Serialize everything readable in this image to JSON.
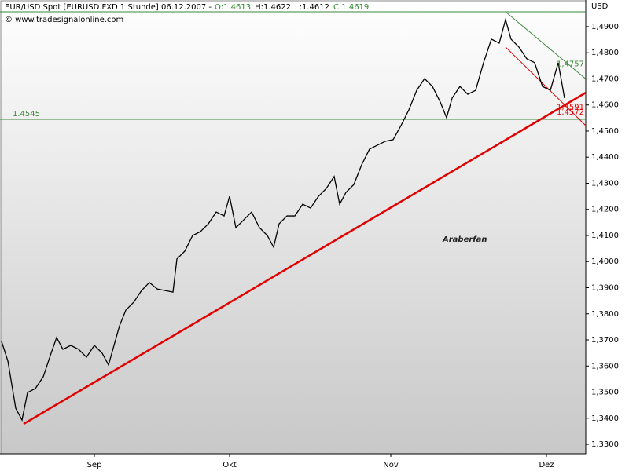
{
  "chart_data": {
    "type": "line",
    "title": "EUR/USD Spot [EURUSD FXD  1 Stunde] 06.12.2007 -",
    "ohlc_labels": [
      {
        "text": "O:1.4613",
        "color": "#2e8b2e"
      },
      {
        "text": "H:1.4622",
        "color": "#000000"
      },
      {
        "text": "L:1.4612",
        "color": "#000000"
      },
      {
        "text": "C:1.4619",
        "color": "#2e8b2e"
      }
    ],
    "source": "© www.tradesignalonline.com",
    "annotation": "Araberfan",
    "y_unit": "USD",
    "x": [
      2,
      10,
      20,
      28,
      35,
      45,
      55,
      65,
      72,
      80,
      90,
      100,
      110,
      120,
      130,
      138,
      145,
      152,
      160,
      170,
      180,
      190,
      200,
      210,
      220,
      225,
      235,
      245,
      255,
      265,
      275,
      285,
      292,
      300,
      310,
      320,
      330,
      340,
      348,
      355,
      365,
      375,
      385,
      395,
      405,
      415,
      425,
      432,
      440,
      450,
      460,
      470,
      480,
      490,
      500,
      510,
      520,
      530,
      540,
      550,
      560,
      568,
      575,
      585,
      595,
      605,
      615,
      625,
      635,
      643,
      650,
      660,
      670,
      680,
      690,
      700,
      710,
      718
    ],
    "series": [
      {
        "name": "EUR/USD",
        "color": "#000000",
        "values": [
          1.3694,
          1.3619,
          1.3438,
          1.3393,
          1.3498,
          1.3514,
          1.3559,
          1.3649,
          1.3709,
          1.3664,
          1.3679,
          1.3664,
          1.3634,
          1.3679,
          1.3649,
          1.3604,
          1.3679,
          1.3754,
          1.3814,
          1.3844,
          1.3889,
          1.392,
          1.3895,
          1.3889,
          1.3883,
          1.401,
          1.404,
          1.41,
          1.4115,
          1.4145,
          1.419,
          1.4175,
          1.425,
          1.413,
          1.416,
          1.419,
          1.413,
          1.41,
          1.4055,
          1.4145,
          1.4175,
          1.4175,
          1.422,
          1.4205,
          1.425,
          1.428,
          1.4326,
          1.422,
          1.4265,
          1.4295,
          1.4371,
          1.4431,
          1.4446,
          1.4461,
          1.4467,
          1.4521,
          1.4581,
          1.4656,
          1.4701,
          1.4671,
          1.4611,
          1.4551,
          1.4626,
          1.4671,
          1.4641,
          1.4656,
          1.4762,
          1.4852,
          1.4837,
          1.4927,
          1.4852,
          1.4822,
          1.4777,
          1.4762,
          1.4671,
          1.4656,
          1.4762,
          1.4626
        ]
      }
    ],
    "trendlines": [
      {
        "x": [
          30,
          745
        ],
        "values": [
          1.3378,
          1.4647
        ],
        "color": "#e00000"
      },
      {
        "x": [
          643,
          745
        ],
        "values": [
          1.4957,
          1.47
        ],
        "color": "#3a8a3a"
      },
      {
        "x": [
          643,
          745
        ],
        "values": [
          1.4822,
          1.4521
        ],
        "color": "#e00000"
      }
    ],
    "hlines": [
      {
        "value": 1.4545,
        "label": "1.4545",
        "color": "#3a8a3a"
      },
      {
        "value": 1.4957,
        "color": "#3a8a3a"
      }
    ],
    "price_labels": [
      {
        "value": 1.4757,
        "label": "1,4757",
        "color": "#3a8a3a"
      },
      {
        "value": 1.4572,
        "label": "1,4572",
        "color": "#e00000"
      },
      {
        "value": 1.4591,
        "label": "1,4591",
        "color": "#e00000"
      }
    ],
    "xlim": [
      0,
      745
    ],
    "xticks": [
      {
        "value": 120,
        "label": "Sep"
      },
      {
        "value": 292,
        "label": "Okt"
      },
      {
        "value": 497,
        "label": "Nov"
      },
      {
        "value": 695,
        "label": "Dez"
      }
    ],
    "ylim": [
      1.3264,
      1.4957
    ],
    "yticks": [
      {
        "value": 1.33,
        "label": "1,3300"
      },
      {
        "value": 1.34,
        "label": "1,3400"
      },
      {
        "value": 1.35,
        "label": "1,3500"
      },
      {
        "value": 1.36,
        "label": "1,3600"
      },
      {
        "value": 1.37,
        "label": "1,3700"
      },
      {
        "value": 1.38,
        "label": "1,3800"
      },
      {
        "value": 1.39,
        "label": "1,3900"
      },
      {
        "value": 1.4,
        "label": "1,4000"
      },
      {
        "value": 1.41,
        "label": "1,4100"
      },
      {
        "value": 1.42,
        "label": "1,4200"
      },
      {
        "value": 1.43,
        "label": "1,4300"
      },
      {
        "value": 1.44,
        "label": "1,4400"
      },
      {
        "value": 1.45,
        "label": "1,4500"
      },
      {
        "value": 1.46,
        "label": "1,4600"
      },
      {
        "value": 1.47,
        "label": "1,4700"
      },
      {
        "value": 1.48,
        "label": "1,4800"
      },
      {
        "value": 1.49,
        "label": "1,4900"
      }
    ]
  }
}
